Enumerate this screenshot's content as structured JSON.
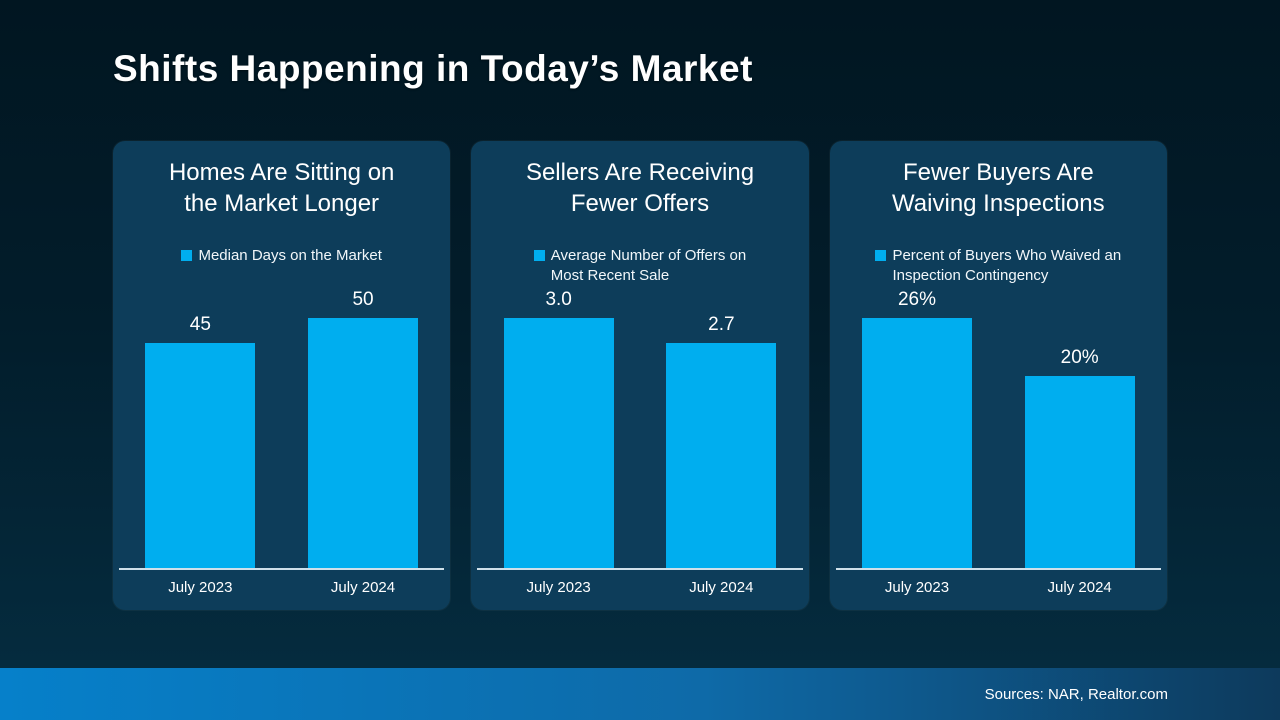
{
  "page": {
    "title": "Shifts Happening in Today’s Market",
    "footer_sources": "Sources: NAR, Realtor.com"
  },
  "colors": {
    "bar": "#00aeef",
    "card_background": "#0d3d5a",
    "page_background_top": "#011621",
    "page_background_bottom": "#052b3e",
    "footer_gradient_left": "#0680ca",
    "footer_gradient_right": "#0d3a5c",
    "axis_line": "#cfe0ea"
  },
  "chart_data": [
    {
      "type": "bar",
      "title": "Homes Are Sitting on the Market Longer",
      "title_lines": [
        "Homes Are Sitting on",
        "the Market Longer"
      ],
      "legend": "Median Days on the Market",
      "legend_lines": [
        "Median Days on the Market",
        ""
      ],
      "categories": [
        "July 2023",
        "July 2024"
      ],
      "values": [
        45,
        50
      ],
      "value_labels": [
        "45",
        "50"
      ],
      "ylim": [
        0,
        50
      ],
      "grid": false,
      "legend_position": "top-center"
    },
    {
      "type": "bar",
      "title": "Sellers Are Receiving Fewer Offers",
      "title_lines": [
        "Sellers Are Receiving",
        "Fewer Offers"
      ],
      "legend": "Average Number of Offers on Most Recent Sale",
      "legend_lines": [
        "Average Number of Offers on",
        "Most Recent Sale"
      ],
      "categories": [
        "July 2023",
        "July 2024"
      ],
      "values": [
        3.0,
        2.7
      ],
      "value_labels": [
        "3.0",
        "2.7"
      ],
      "ylim": [
        0,
        3.0
      ],
      "grid": false,
      "legend_position": "top-center"
    },
    {
      "type": "bar",
      "title": "Fewer Buyers Are Waiving Inspections",
      "title_lines": [
        "Fewer Buyers Are",
        "Waiving Inspections"
      ],
      "legend": "Percent of Buyers Who Waived an Inspection Contingency",
      "legend_lines": [
        "Percent of Buyers Who Waived an",
        "Inspection Contingency"
      ],
      "categories": [
        "July 2023",
        "July 2024"
      ],
      "values": [
        26,
        20
      ],
      "value_labels": [
        "26%",
        "20%"
      ],
      "ylim": [
        0,
        26
      ],
      "grid": false,
      "legend_position": "top-center"
    }
  ]
}
